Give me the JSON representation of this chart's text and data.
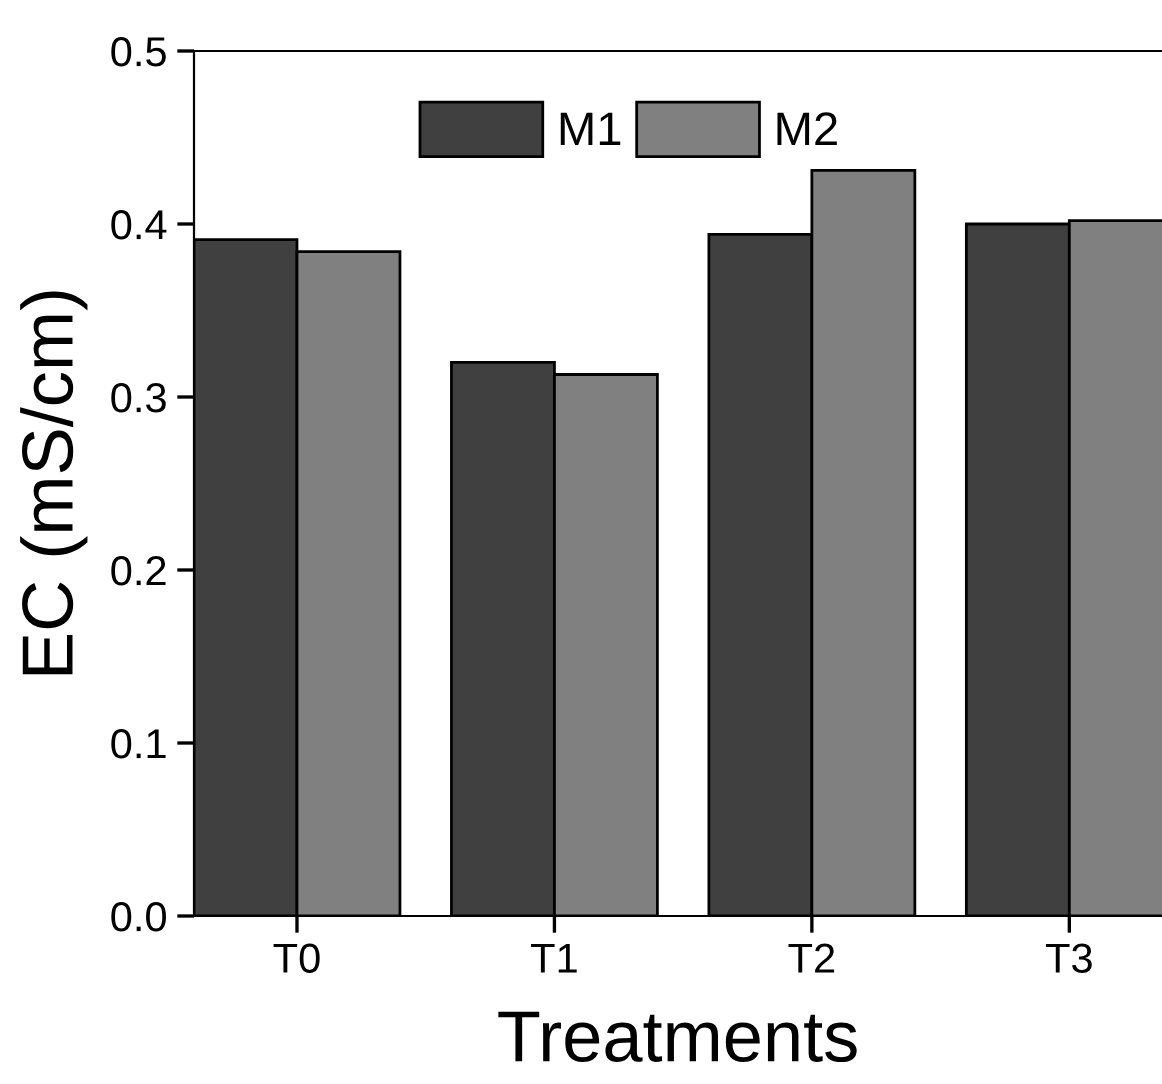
{
  "chart_data": {
    "type": "bar",
    "xlabel": "Treatments",
    "ylabel": "EC (mS/cm)",
    "categories": [
      "T0",
      "T1",
      "T2",
      "T3"
    ],
    "series": [
      {
        "name": "M1",
        "color": "#404040",
        "values": [
          0.391,
          0.32,
          0.394,
          0.4
        ]
      },
      {
        "name": "M2",
        "color": "#808080",
        "values": [
          0.384,
          0.313,
          0.431,
          0.402
        ]
      }
    ],
    "ylim": [
      0,
      0.5
    ],
    "yticks": [
      {
        "value": 0,
        "label": "0.0"
      },
      0.1,
      0.2,
      0.3,
      0.4,
      0.5
    ],
    "grid": false,
    "legend": "top"
  }
}
